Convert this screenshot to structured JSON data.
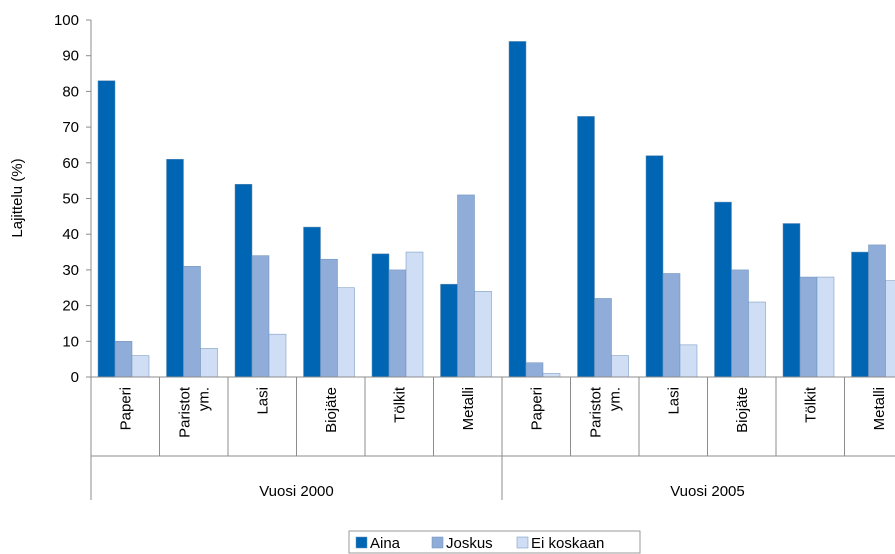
{
  "chart_data": {
    "type": "bar",
    "title": "",
    "xlabel": "",
    "ylabel": "Lajittelu (%)",
    "ylim": [
      0,
      100
    ],
    "yticks": [
      0,
      10,
      20,
      30,
      40,
      50,
      60,
      70,
      80,
      90,
      100
    ],
    "grid": false,
    "legend_position": "bottom",
    "groups": [
      {
        "label": "Vuosi 2000",
        "categories": [
          [
            "Paperi"
          ],
          [
            "Paristot",
            "ym."
          ],
          [
            "Lasi"
          ],
          [
            "Biojäte"
          ],
          [
            "Tölkit"
          ],
          [
            "Metalli"
          ]
        ]
      },
      {
        "label": "Vuosi 2005",
        "categories": [
          [
            "Paperi"
          ],
          [
            "Paristot",
            "ym."
          ],
          [
            "Lasi"
          ],
          [
            "Biojäte"
          ],
          [
            "Tölkit"
          ],
          [
            "Metalli"
          ]
        ]
      }
    ],
    "series": [
      {
        "name": "Aina",
        "color": "#0066b3",
        "values": [
          83,
          61,
          54,
          42,
          34.5,
          26,
          94,
          73,
          62,
          49,
          43,
          35
        ]
      },
      {
        "name": "Joskus",
        "color": "#8fadd8",
        "values": [
          10,
          31,
          34,
          33,
          30,
          51,
          4,
          22,
          29,
          30,
          28,
          37
        ]
      },
      {
        "name": "Ei koskaan",
        "color": "#cfdef4",
        "values": [
          6,
          8,
          12,
          25,
          35,
          24,
          1,
          6,
          9,
          21,
          28,
          27
        ]
      }
    ]
  }
}
